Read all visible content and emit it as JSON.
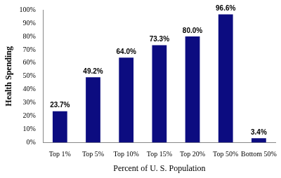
{
  "chart_data": {
    "type": "bar",
    "categories": [
      "Top 1%",
      "Top 5%",
      "Top 10%",
      "Top 15%",
      "Top 20%",
      "Top 50%",
      "Bottom 50%"
    ],
    "values": [
      23.7,
      49.2,
      64.0,
      73.3,
      80.0,
      96.6,
      3.4
    ],
    "value_labels": [
      "23.7%",
      "49.2%",
      "64.0%",
      "73.3%",
      "80.0%",
      "96.6%",
      "3.4%"
    ],
    "data_labels": true,
    "color": "#0c0c80",
    "x_label": "Percent of U. S. Population",
    "y_label": "Health Spending",
    "ylim": [
      0,
      100
    ],
    "yticks": [
      {
        "value": 0,
        "label": "0%"
      },
      {
        "value": 10,
        "label": "10%"
      },
      {
        "value": 20,
        "label": "20%"
      },
      {
        "value": 30,
        "label": "30%"
      },
      {
        "value": 40,
        "label": "40%"
      },
      {
        "value": 50,
        "label": "50%"
      },
      {
        "value": 60,
        "label": "60%"
      },
      {
        "value": 70,
        "label": "70%"
      },
      {
        "value": 80,
        "label": "80%"
      },
      {
        "value": 90,
        "label": "90%"
      },
      {
        "value": 100,
        "label": "100%"
      }
    ],
    "grid": false
  }
}
